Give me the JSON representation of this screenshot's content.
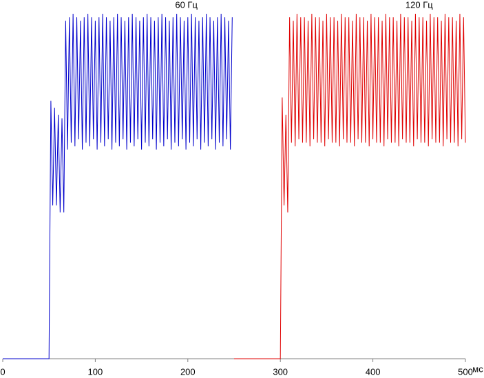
{
  "chart_data": {
    "type": "line",
    "xlabel": "мс",
    "xlim": [
      0,
      500
    ],
    "xticks": [
      0,
      100,
      200,
      300,
      400,
      500
    ],
    "ylim": [
      0,
      100
    ],
    "series": [
      {
        "name": "60 Гц",
        "color": "#0000cc",
        "x": [
          0,
          2,
          4,
          6,
          8,
          10,
          12,
          14,
          16,
          18,
          20,
          22,
          24,
          26,
          28,
          30,
          32,
          34,
          36,
          38,
          40,
          42,
          44,
          46,
          48,
          50,
          52,
          54,
          56,
          58,
          60,
          62,
          64,
          66,
          68,
          70,
          72,
          74,
          76,
          78,
          80,
          82,
          84,
          86,
          88,
          90,
          92,
          94,
          96,
          98,
          100,
          102,
          104,
          106,
          108,
          110,
          112,
          114,
          116,
          118,
          120,
          122,
          124,
          126,
          128,
          130,
          132,
          134,
          136,
          138,
          140,
          142,
          144,
          146,
          148,
          150,
          152,
          154,
          156,
          158,
          160,
          162,
          164,
          166,
          168,
          170,
          172,
          174,
          176,
          178,
          180,
          182,
          184,
          186,
          188,
          190,
          192,
          194,
          196,
          198,
          200,
          202,
          204,
          206,
          208,
          210,
          212,
          214,
          216,
          218,
          220,
          222,
          224,
          226,
          228,
          230,
          232,
          234,
          236,
          238,
          240,
          242,
          244,
          246,
          248
        ],
        "values": [
          0,
          0,
          0,
          0,
          0,
          0,
          0,
          0,
          0,
          0,
          0,
          0,
          0,
          0,
          0,
          0,
          0,
          0,
          0,
          0,
          0,
          0,
          0,
          0,
          0,
          0,
          74,
          44,
          72,
          44,
          70,
          42,
          69,
          42,
          97,
          60,
          98,
          62,
          99,
          61,
          98,
          63,
          97,
          60,
          98,
          62,
          99,
          61,
          98,
          63,
          97,
          60,
          98,
          62,
          99,
          61,
          98,
          63,
          97,
          60,
          98,
          62,
          99,
          61,
          98,
          63,
          97,
          60,
          98,
          62,
          99,
          61,
          98,
          63,
          97,
          60,
          98,
          62,
          99,
          61,
          98,
          63,
          97,
          60,
          98,
          62,
          99,
          61,
          98,
          63,
          97,
          60,
          98,
          62,
          99,
          61,
          98,
          63,
          97,
          60,
          98,
          62,
          99,
          61,
          98,
          63,
          97,
          60,
          98,
          62,
          99,
          61,
          98,
          63,
          97,
          60,
          98,
          62,
          99,
          61,
          98,
          63,
          97,
          60,
          98
        ]
      },
      {
        "name": "120 Гц",
        "color": "#e00000",
        "x": [
          250,
          252,
          254,
          256,
          258,
          260,
          262,
          264,
          266,
          268,
          270,
          272,
          274,
          276,
          278,
          280,
          282,
          284,
          286,
          288,
          290,
          292,
          294,
          296,
          298,
          300,
          302,
          304,
          306,
          308,
          310,
          312,
          314,
          316,
          318,
          320,
          322,
          324,
          326,
          328,
          330,
          332,
          334,
          336,
          338,
          340,
          342,
          344,
          346,
          348,
          350,
          352,
          354,
          356,
          358,
          360,
          362,
          364,
          366,
          368,
          370,
          372,
          374,
          376,
          378,
          380,
          382,
          384,
          386,
          388,
          390,
          392,
          394,
          396,
          398,
          400,
          402,
          404,
          406,
          408,
          410,
          412,
          414,
          416,
          418,
          420,
          422,
          424,
          426,
          428,
          430,
          432,
          434,
          436,
          438,
          440,
          442,
          444,
          446,
          448,
          450,
          452,
          454,
          456,
          458,
          460,
          462,
          464,
          466,
          468,
          470,
          472,
          474,
          476,
          478,
          480,
          482,
          484,
          486,
          488,
          490,
          492,
          494,
          496,
          498,
          500
        ],
        "values": [
          0,
          0,
          0,
          0,
          0,
          0,
          0,
          0,
          0,
          0,
          0,
          0,
          0,
          0,
          0,
          0,
          0,
          0,
          0,
          0,
          0,
          0,
          0,
          0,
          0,
          0,
          75,
          44,
          70,
          42,
          98,
          62,
          97,
          61,
          99,
          63,
          98,
          62,
          98,
          62,
          97,
          61,
          99,
          63,
          98,
          62,
          98,
          62,
          97,
          61,
          99,
          63,
          98,
          62,
          98,
          62,
          97,
          61,
          99,
          63,
          98,
          62,
          98,
          62,
          97,
          61,
          99,
          63,
          98,
          62,
          98,
          62,
          97,
          61,
          99,
          63,
          98,
          62,
          98,
          62,
          97,
          61,
          99,
          63,
          98,
          62,
          98,
          62,
          97,
          61,
          99,
          63,
          98,
          62,
          98,
          62,
          97,
          61,
          99,
          63,
          98,
          62,
          98,
          62,
          97,
          61,
          99,
          63,
          98,
          62,
          98,
          62,
          97,
          61,
          99,
          63,
          98,
          62,
          98,
          62,
          97,
          61,
          99,
          63,
          98,
          62
        ]
      }
    ]
  }
}
